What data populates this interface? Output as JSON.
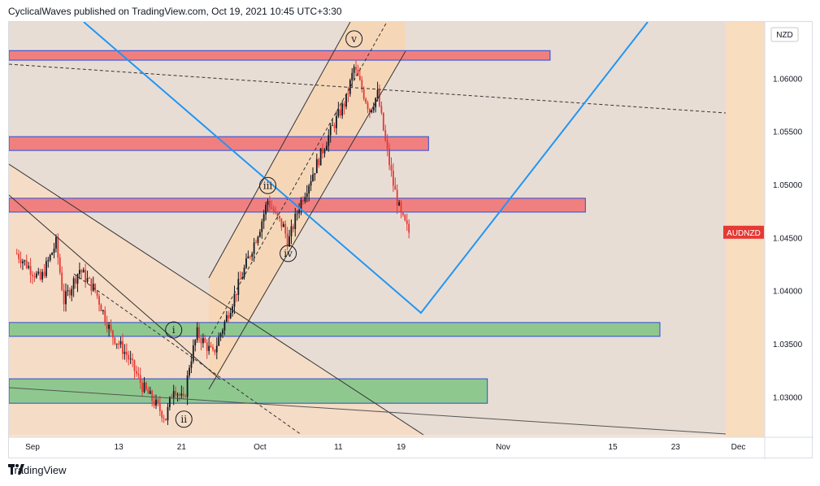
{
  "header": {
    "text": "CyclicalWaves published on TradingView.com, Oct 19, 2021 10:45 UTC+3:30"
  },
  "footer": {
    "brand": "TradingView"
  },
  "currency_badge": "NZD",
  "symbol_badge": {
    "text": "AUDNZD",
    "color": "#e53935"
  },
  "colors": {
    "up": "#131722",
    "down": "#e53935",
    "blue_line": "#2196f3",
    "red_zone": "#f08080",
    "green_zone": "#8fc88f",
    "bg": "#e8ddd5",
    "orange": "#f9ddbf"
  },
  "chart_data": {
    "type": "candlestick",
    "symbol": "AUDNZD",
    "currency": "NZD",
    "x_ticks": [
      {
        "label": "Sep",
        "day": 2
      },
      {
        "label": "13",
        "day": 13
      },
      {
        "label": "21",
        "day": 21
      },
      {
        "label": "Oct",
        "day": 31
      },
      {
        "label": "11",
        "day": 41
      },
      {
        "label": "19",
        "day": 49
      },
      {
        "label": "Nov",
        "day": 62
      },
      {
        "label": "15",
        "day": 76
      },
      {
        "label": "23",
        "day": 84
      },
      {
        "label": "Dec",
        "day": 92
      }
    ],
    "y_ticks": [
      "1.06000",
      "1.05500",
      "1.05000",
      "1.04500",
      "1.04000",
      "1.03500",
      "1.03000"
    ],
    "ylim": [
      1.0262,
      1.0653
    ],
    "wave_labels": [
      {
        "text": "i",
        "day": 20,
        "price": 1.0363
      },
      {
        "text": "ii",
        "day": 21.3,
        "price": 1.0279
      },
      {
        "text": "iii",
        "day": 32,
        "price": 1.0499
      },
      {
        "text": "iv",
        "day": 34.6,
        "price": 1.0435
      },
      {
        "text": "v",
        "day": 43,
        "price": 1.0637
      }
    ],
    "zones": [
      {
        "kind": "resistance",
        "y_top": 1.0626,
        "y_bottom": 1.0617,
        "x_end_day": 68
      },
      {
        "kind": "resistance",
        "y_top": 1.0545,
        "y_bottom": 1.0532,
        "x_end_day": 52.5
      },
      {
        "kind": "resistance",
        "y_top": 1.0487,
        "y_bottom": 1.0474,
        "x_end_day": 72.5
      },
      {
        "kind": "support",
        "y_top": 1.037,
        "y_bottom": 1.0357,
        "x_end_day": 82
      },
      {
        "kind": "support",
        "y_top": 1.0317,
        "y_bottom": 1.0294,
        "x_end_day": 60
      }
    ],
    "candles": []
  }
}
